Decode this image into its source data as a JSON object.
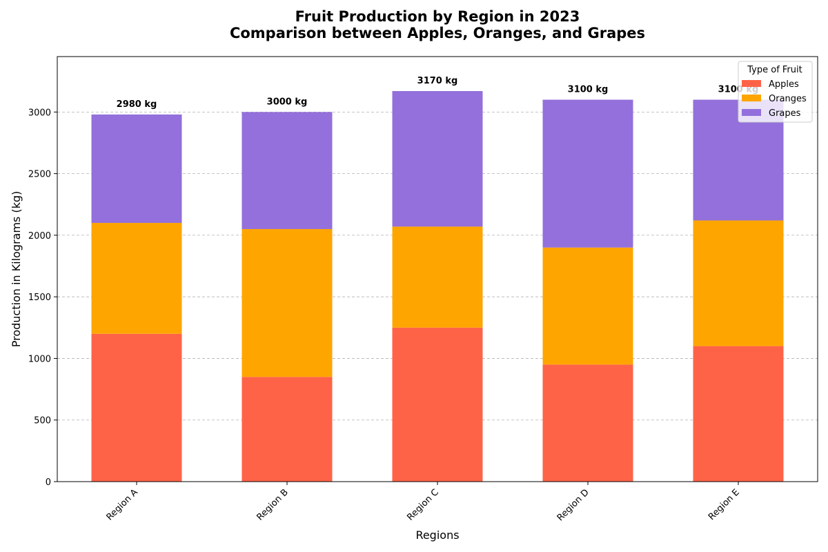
{
  "chart_data": {
    "type": "bar",
    "stacked": true,
    "title": "Fruit Production by Region in 2023",
    "subtitle": "Comparison between Apples, Oranges, and Grapes",
    "xlabel": "Regions",
    "ylabel": "Production in Kilograms (kg)",
    "categories": [
      "Region A",
      "Region B",
      "Region C",
      "Region D",
      "Region E"
    ],
    "series": [
      {
        "name": "Apples",
        "color": "#ff6347",
        "values": [
          1200,
          850,
          1250,
          950,
          1100
        ]
      },
      {
        "name": "Oranges",
        "color": "#ffa500",
        "values": [
          900,
          1200,
          820,
          950,
          1020
        ]
      },
      {
        "name": "Grapes",
        "color": "#9370db",
        "values": [
          880,
          950,
          1100,
          1200,
          980
        ]
      }
    ],
    "total_labels": [
      "2980 kg",
      "3000 kg",
      "3170 kg",
      "3100 kg",
      "3100 kg"
    ],
    "ylim": [
      0,
      3450
    ],
    "yticks": [
      0,
      500,
      1000,
      1500,
      2000,
      2500,
      3000
    ],
    "grid": true,
    "legend": {
      "title": "Type of Fruit",
      "placement": "top-right"
    }
  }
}
